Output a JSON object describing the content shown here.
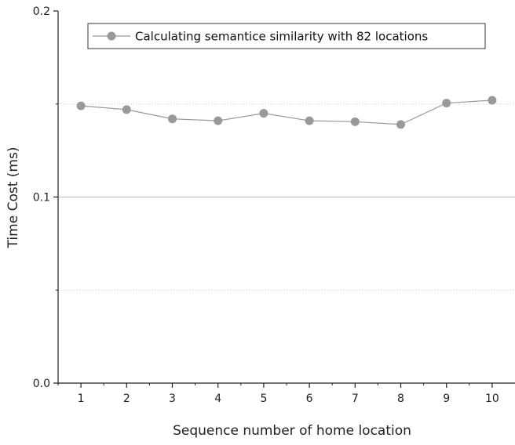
{
  "chart_data": {
    "type": "line",
    "xlabel": "Sequence number of home location",
    "ylabel": "Time Cost (ms)",
    "x": [
      1,
      2,
      3,
      4,
      5,
      6,
      7,
      8,
      9,
      10
    ],
    "xlim": [
      0.5,
      10.5
    ],
    "ylim": [
      0,
      0.2
    ],
    "x_ticks": [
      "1",
      "2",
      "3",
      "4",
      "5",
      "6",
      "7",
      "8",
      "9",
      "10"
    ],
    "y_ticks": [
      {
        "value": 0.0,
        "label": "0.0"
      },
      {
        "value": 0.1,
        "label": "0.1"
      },
      {
        "value": 0.2,
        "label": "0.2"
      }
    ],
    "series": [
      {
        "name": "Calculating semantice similarity with 82 locations",
        "color": "#999999",
        "values": [
          0.149,
          0.147,
          0.142,
          0.141,
          0.145,
          0.141,
          0.1405,
          0.139,
          0.1505,
          0.152
        ]
      }
    ],
    "grid": {
      "major_color": "#bbbbbb",
      "minor_color": "#cccccc",
      "minor_dotted": true
    },
    "legend": "top-right"
  }
}
